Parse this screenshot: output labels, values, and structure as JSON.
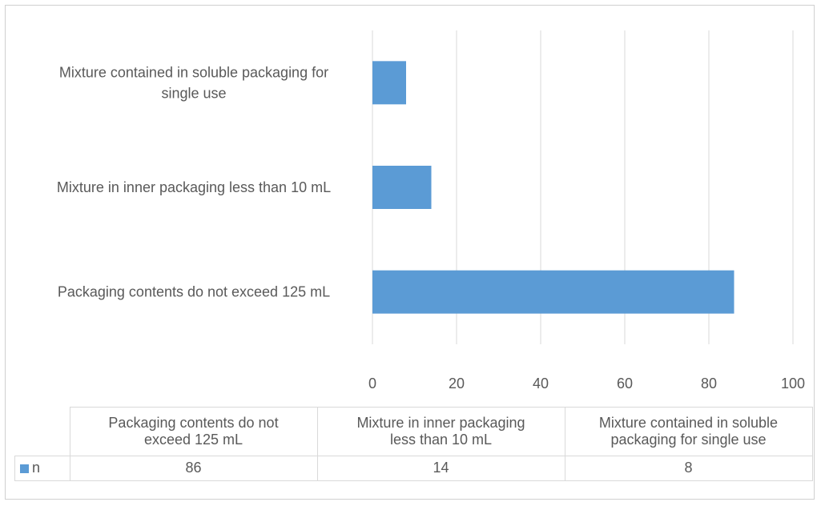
{
  "chart_data": {
    "type": "bar",
    "orientation": "horizontal",
    "categories": [
      "Packaging contents do not exceed 125 mL",
      "Mixture in inner packaging less than 10 mL",
      "Mixture contained in soluble packaging for single use"
    ],
    "series": [
      {
        "name": "n",
        "values": [
          86,
          14,
          8
        ],
        "color": "#5b9bd5"
      }
    ],
    "xlim": [
      0,
      100
    ],
    "x_ticks": [
      "0",
      "20",
      "40",
      "60",
      "80",
      "100"
    ],
    "grid": true,
    "data_table": true,
    "table_headers": [
      "Packaging contents do not exceed 125 mL",
      "Mixture in inner packaging less than 10 mL",
      "Mixture contained in soluble packaging for single use"
    ],
    "table_values": [
      "86",
      "14",
      "8"
    ],
    "series_label": "n",
    "category_labels_display": [
      [
        "Packaging contents do not exceed 125 mL"
      ],
      [
        "Mixture in inner packaging less than 10 mL"
      ],
      [
        "Mixture contained in soluble packaging for",
        "single use"
      ]
    ],
    "table_headers_display": [
      [
        "Packaging contents do not",
        "exceed 125 mL"
      ],
      [
        "Mixture in inner packaging",
        "less than 10 mL"
      ],
      [
        "Mixture contained in soluble",
        "packaging for single use"
      ]
    ]
  }
}
